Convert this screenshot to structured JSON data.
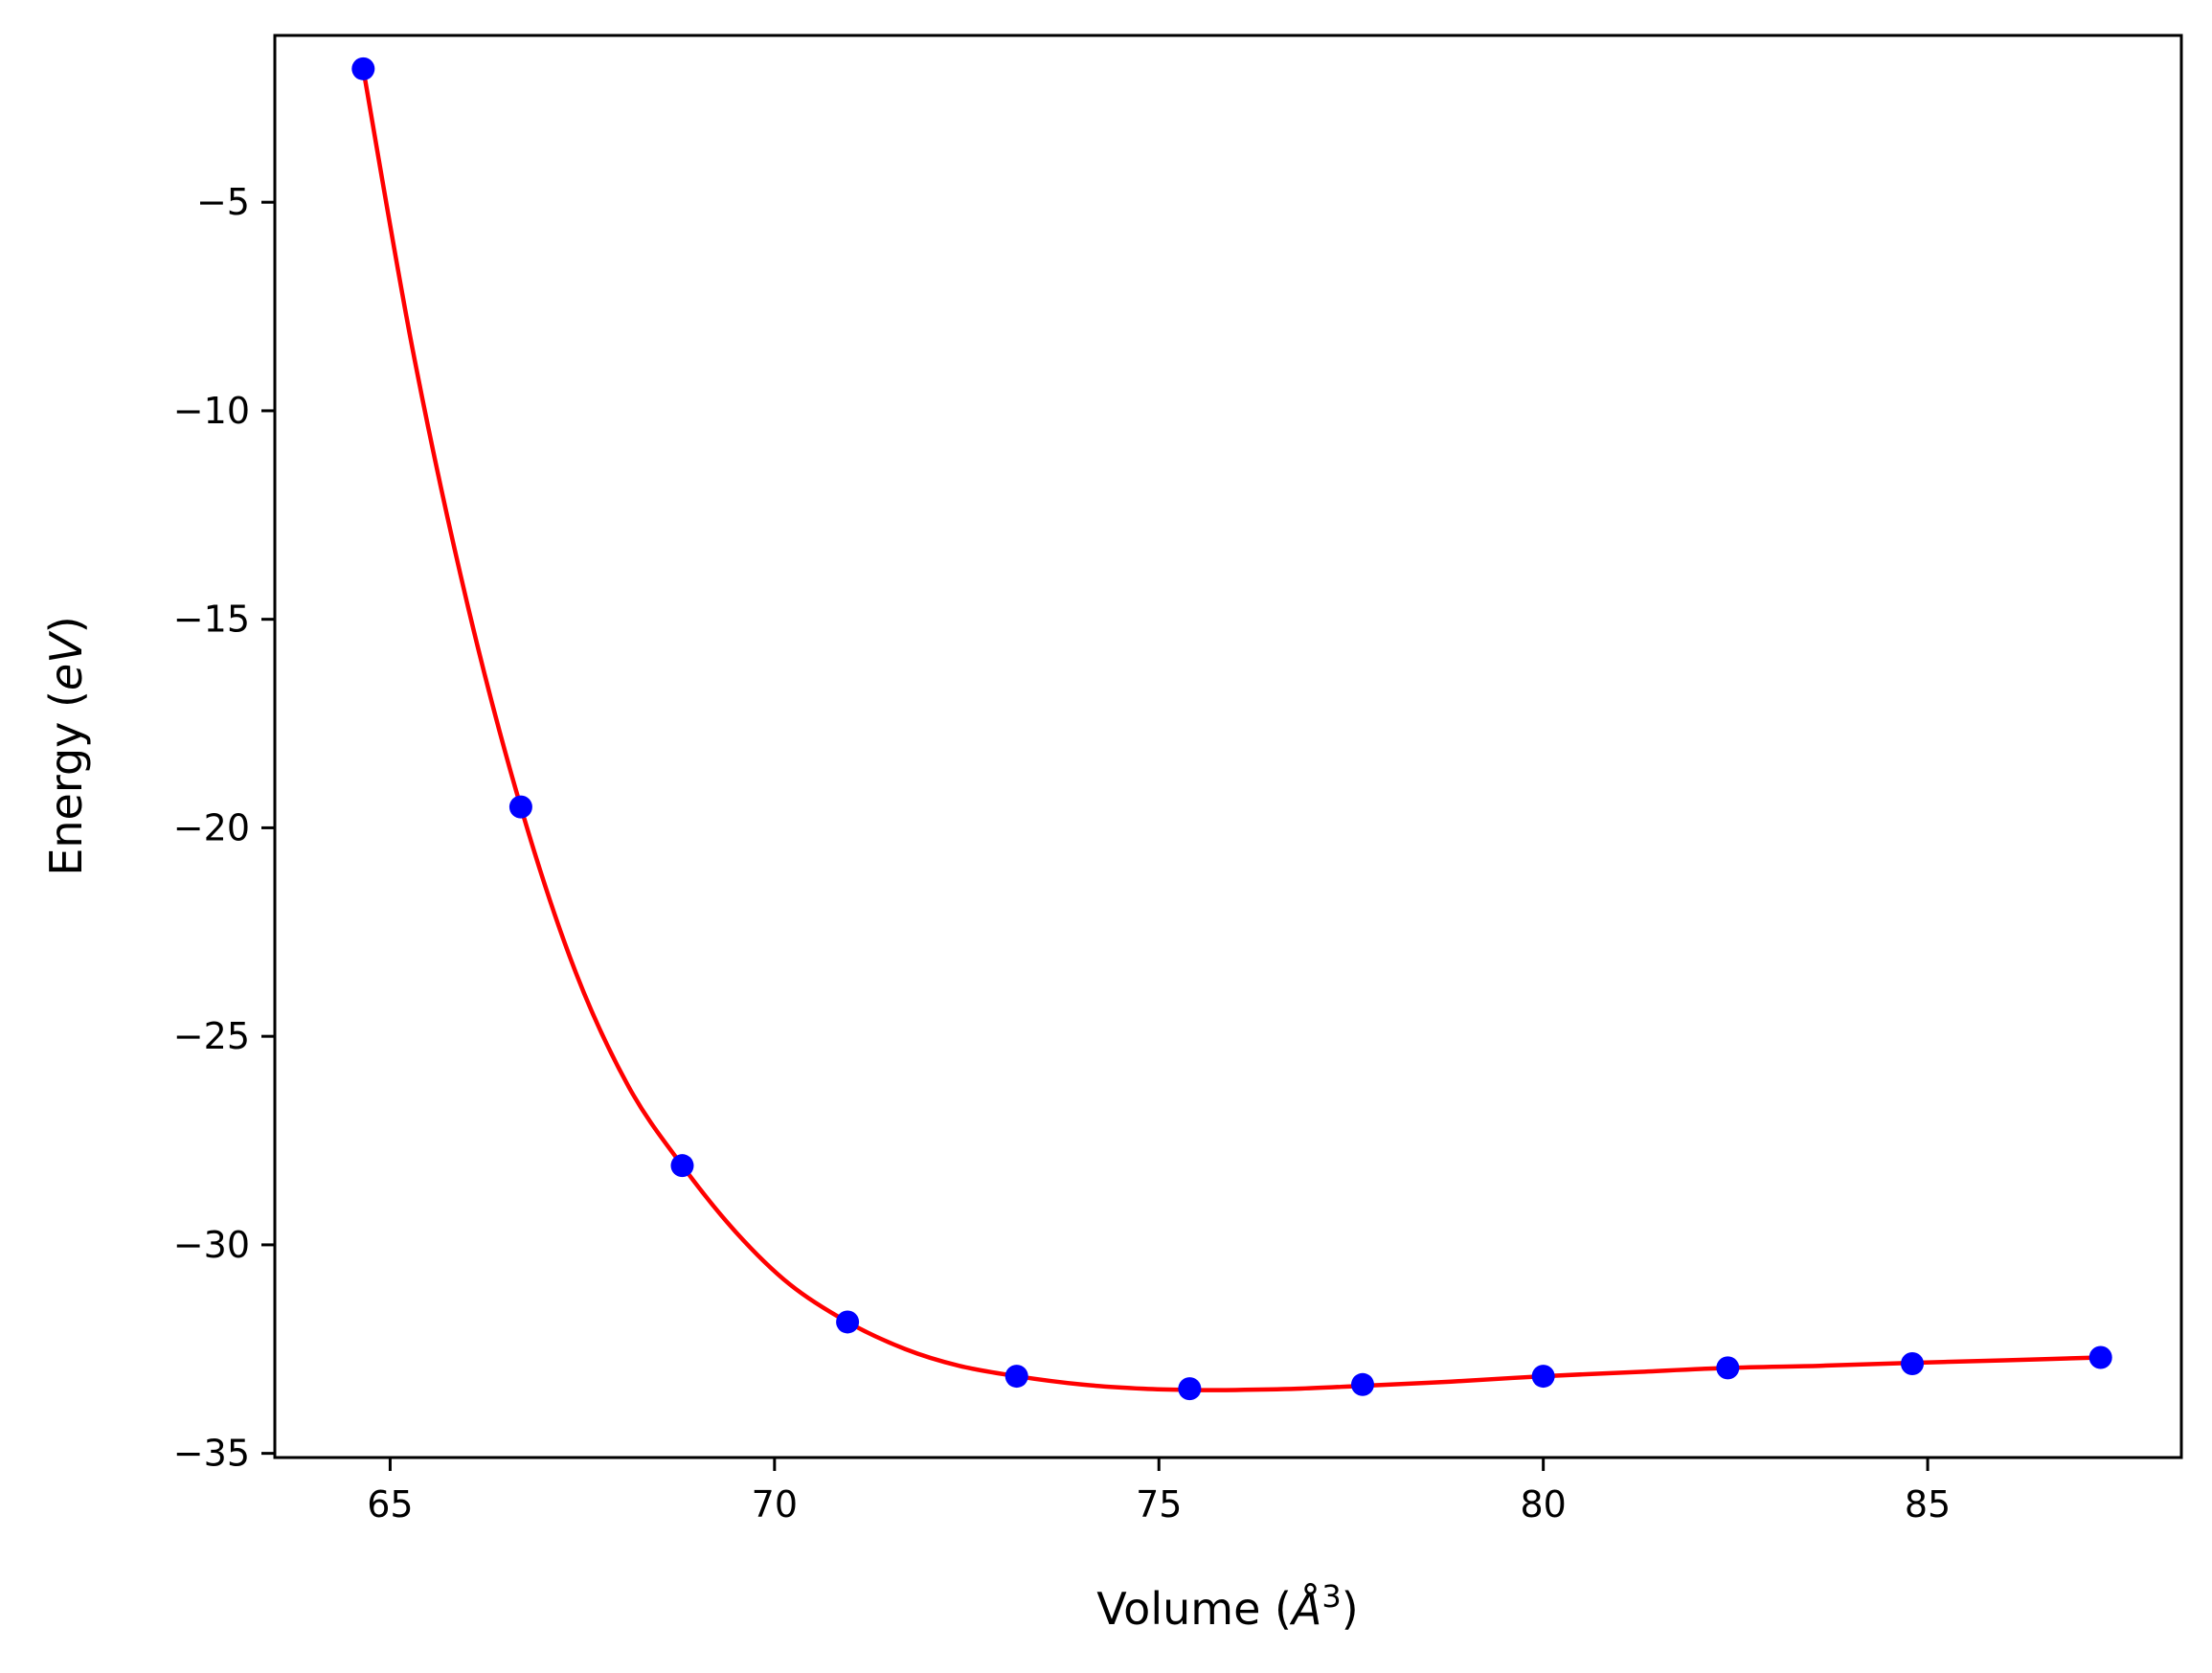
{
  "chart_data": {
    "type": "scatter",
    "title": "",
    "xlabel": {
      "prefix": "Volume (",
      "symbol": "Å",
      "superscript": "3",
      "suffix": ")"
    },
    "ylabel": {
      "prefix": "Energy (",
      "symbol": "eV",
      "suffix": ")"
    },
    "xlim": [
      63.5,
      88.3
    ],
    "ylim": [
      -35.1,
      -1.0
    ],
    "x_ticks": [
      65,
      70,
      75,
      80,
      85
    ],
    "y_ticks": [
      -35,
      -30,
      -25,
      -20,
      -15,
      -10,
      -5
    ],
    "x_tick_labels": [
      "65",
      "70",
      "75",
      "80",
      "85"
    ],
    "y_tick_labels": [
      "−35",
      "−30",
      "−25",
      "−20",
      "−15",
      "−10",
      "−5"
    ],
    "grid": false,
    "legend": "none",
    "series": [
      {
        "kind": "points",
        "color": "#0000ff",
        "x": [
          64.65,
          66.7,
          68.8,
          70.95,
          73.15,
          75.4,
          77.65,
          80.0,
          82.4,
          84.8,
          87.25
        ],
        "y": [
          -1.8,
          -19.5,
          -28.1,
          -31.85,
          -33.15,
          -33.45,
          -33.35,
          -33.15,
          -32.95,
          -32.85,
          -32.7
        ]
      },
      {
        "kind": "fit-curve",
        "color": "#ff0000",
        "x": [
          64.65,
          65.3,
          66.0,
          66.7,
          67.4,
          68.1,
          68.8,
          69.5,
          70.2,
          70.95,
          71.7,
          72.4,
          73.15,
          74.0,
          74.8,
          75.4,
          76.0,
          76.8,
          77.65,
          78.8,
          80.0,
          81.2,
          82.4,
          83.6,
          84.8,
          86.0,
          87.25
        ],
        "y": [
          -1.8,
          -8.6,
          -14.6,
          -19.5,
          -23.4,
          -26.2,
          -28.1,
          -29.7,
          -30.95,
          -31.85,
          -32.5,
          -32.9,
          -33.15,
          -33.35,
          -33.45,
          -33.48,
          -33.48,
          -33.45,
          -33.38,
          -33.28,
          -33.15,
          -33.05,
          -32.95,
          -32.9,
          -32.83,
          -32.77,
          -32.7
        ]
      }
    ]
  }
}
